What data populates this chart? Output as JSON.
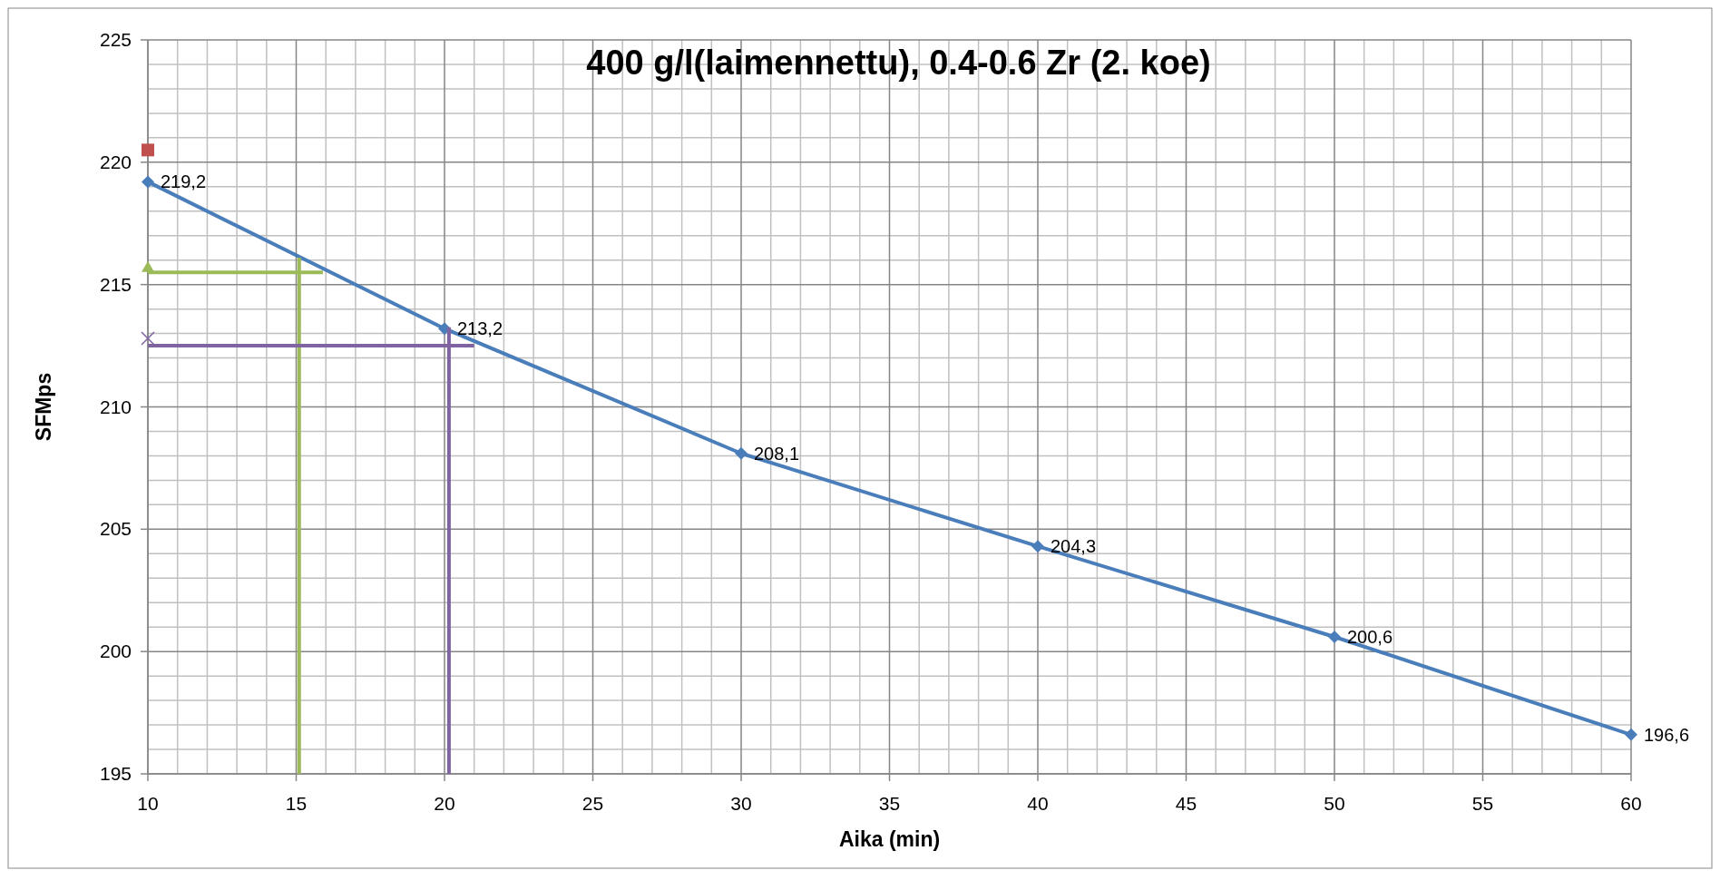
{
  "chart_data": {
    "type": "line",
    "title": "400 g/l(laimennettu), 0.4-0.6 Zr (2. koe)",
    "xlabel": "Aika (min)",
    "ylabel": "SFMps",
    "xlim": [
      10,
      60
    ],
    "xticks": [
      10,
      15,
      20,
      25,
      30,
      35,
      40,
      45,
      50,
      55,
      60
    ],
    "ylim": [
      195,
      225
    ],
    "yticks": [
      195,
      200,
      205,
      210,
      215,
      220,
      225
    ],
    "grid": true,
    "series": [
      {
        "type": "line",
        "color": "#4a7ebb",
        "marker": "diamond",
        "x": [
          10,
          20,
          30,
          40,
          50,
          60
        ],
        "values": [
          219.2,
          213.2,
          208.1,
          204.3,
          200.6,
          196.6
        ],
        "value_labels": [
          "219,2",
          "213,2",
          "208,1",
          "204,3",
          "200,6",
          "196,6"
        ]
      },
      {
        "type": "scatter",
        "color": "#c0504d",
        "marker": "square",
        "x": [
          10
        ],
        "values": [
          220.5
        ]
      },
      {
        "type": "scatter",
        "color": "#9bbb59",
        "marker": "triangle",
        "x": [
          10
        ],
        "values": [
          215.7
        ]
      },
      {
        "type": "scatter",
        "color": "#8064a2",
        "marker": "cross",
        "x": [
          10
        ],
        "values": [
          212.8
        ]
      },
      {
        "type": "line",
        "color": "#9bbb59",
        "marker": "none",
        "x": [
          10,
          15.9
        ],
        "values": [
          215.5,
          215.5
        ]
      },
      {
        "type": "line",
        "color": "#9bbb59",
        "marker": "none",
        "x": [
          15.1,
          15.1
        ],
        "values": [
          216.1,
          195
        ]
      },
      {
        "type": "line",
        "color": "#8064a2",
        "marker": "none",
        "x": [
          10,
          21
        ],
        "values": [
          212.5,
          212.5
        ]
      },
      {
        "type": "line",
        "color": "#8064a2",
        "marker": "none",
        "x": [
          20.15,
          20.15
        ],
        "values": [
          213.25,
          195
        ]
      }
    ]
  }
}
